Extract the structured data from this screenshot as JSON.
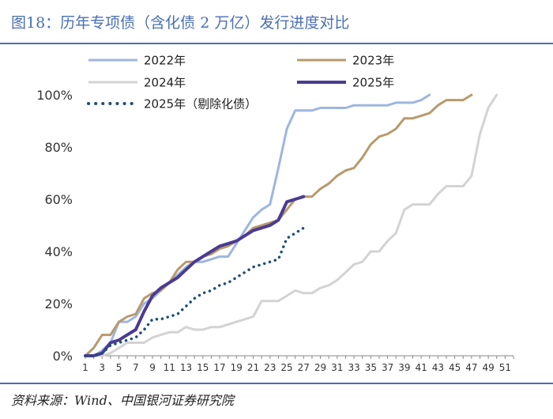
{
  "header": {
    "title": "图18：历年专项债（含化债 2 万亿）发行进度对比"
  },
  "footer": {
    "source": "资料来源：Wind、中国银河证券研究院"
  },
  "chart_data": {
    "type": "line",
    "title": "历年专项债（含化债 2 万亿）发行进度对比",
    "xlabel": "",
    "ylabel": "",
    "xlim": [
      1,
      52
    ],
    "ylim": [
      0,
      100
    ],
    "x_ticks": [
      1,
      3,
      5,
      7,
      9,
      11,
      13,
      15,
      17,
      19,
      21,
      23,
      25,
      27,
      29,
      31,
      33,
      35,
      37,
      39,
      41,
      43,
      45,
      47,
      49,
      51
    ],
    "y_ticks": [
      0,
      20,
      40,
      60,
      80,
      100
    ],
    "y_tick_suffix": "%",
    "legend_position": "top",
    "series": [
      {
        "name": "2022年",
        "color": "#9db6e0",
        "dash": "solid",
        "width": 3,
        "x": [
          1,
          2,
          3,
          4,
          5,
          6,
          7,
          8,
          9,
          10,
          11,
          12,
          13,
          14,
          15,
          16,
          17,
          18,
          19,
          20,
          21,
          22,
          23,
          24,
          25,
          26,
          27,
          28,
          29,
          30,
          31,
          32,
          33,
          34,
          35,
          36,
          37,
          38,
          39,
          40,
          41,
          42
        ],
        "y": [
          0,
          0,
          2,
          5,
          13,
          13,
          15,
          20,
          22,
          25,
          28,
          31,
          34,
          36,
          36,
          37,
          38,
          38,
          43,
          48,
          53,
          56,
          58,
          72,
          87,
          94,
          94,
          94,
          95,
          95,
          95,
          95,
          96,
          96,
          96,
          96,
          96,
          97,
          97,
          97,
          98,
          100
        ]
      },
      {
        "name": "2023年",
        "color": "#b89a6b",
        "dash": "solid",
        "width": 3,
        "x": [
          1,
          2,
          3,
          4,
          5,
          6,
          7,
          8,
          9,
          10,
          11,
          12,
          13,
          14,
          15,
          16,
          17,
          18,
          19,
          20,
          21,
          22,
          23,
          24,
          25,
          26,
          27,
          28,
          29,
          30,
          31,
          32,
          33,
          34,
          35,
          36,
          37,
          38,
          39,
          40,
          41,
          42,
          43,
          44,
          45,
          46,
          47
        ],
        "y": [
          0,
          3,
          8,
          8,
          13,
          15,
          16,
          22,
          24,
          25,
          28,
          33,
          36,
          36,
          38,
          39,
          41,
          42,
          44,
          46,
          49,
          50,
          51,
          52,
          56,
          60,
          61,
          61,
          64,
          66,
          69,
          71,
          72,
          76,
          81,
          84,
          85,
          87,
          91,
          91,
          92,
          93,
          96,
          98,
          98,
          98,
          100
        ]
      },
      {
        "name": "2024年",
        "color": "#d3d3d3",
        "dash": "solid",
        "width": 3,
        "x": [
          1,
          2,
          3,
          4,
          5,
          6,
          7,
          8,
          9,
          10,
          11,
          12,
          13,
          14,
          15,
          16,
          17,
          18,
          19,
          20,
          21,
          22,
          23,
          24,
          25,
          26,
          27,
          28,
          29,
          30,
          31,
          32,
          33,
          34,
          35,
          36,
          37,
          38,
          39,
          40,
          41,
          42,
          43,
          44,
          45,
          46,
          47,
          48,
          49,
          50
        ],
        "y": [
          0,
          0,
          0,
          1,
          3,
          5,
          5,
          5,
          7,
          8,
          9,
          9,
          11,
          10,
          10,
          11,
          11,
          12,
          13,
          14,
          15,
          21,
          21,
          21,
          23,
          25,
          24,
          24,
          26,
          27,
          29,
          32,
          35,
          36,
          40,
          40,
          44,
          47,
          56,
          58,
          58,
          58,
          62,
          65,
          65,
          65,
          69,
          85,
          95,
          100
        ]
      },
      {
        "name": "2025年",
        "color": "#4b3b92",
        "dash": "solid",
        "width": 4,
        "x": [
          1,
          2,
          3,
          4,
          5,
          6,
          7,
          8,
          9,
          10,
          11,
          12,
          13,
          14,
          15,
          16,
          17,
          18,
          19,
          20,
          21,
          22,
          23,
          24,
          25,
          26,
          27
        ],
        "y": [
          0,
          0,
          1,
          5,
          6,
          8,
          10,
          17,
          23,
          26,
          28,
          30,
          33,
          36,
          38,
          40,
          42,
          43,
          44,
          46,
          48,
          49,
          50,
          52,
          59,
          60,
          61
        ]
      },
      {
        "name": "2025年（剔除化债）",
        "color": "#1f4e79",
        "dash": "dotted",
        "width": 3.5,
        "x": [
          1,
          2,
          3,
          4,
          5,
          6,
          7,
          8,
          9,
          10,
          11,
          12,
          13,
          14,
          15,
          16,
          17,
          18,
          19,
          20,
          21,
          22,
          23,
          24,
          25,
          26,
          27
        ],
        "y": [
          0,
          0,
          1,
          4,
          5,
          6,
          7,
          10,
          14,
          14,
          15,
          16,
          19,
          22,
          24,
          25,
          27,
          28,
          30,
          32,
          34,
          35,
          36,
          37,
          45,
          47,
          49
        ]
      }
    ]
  }
}
